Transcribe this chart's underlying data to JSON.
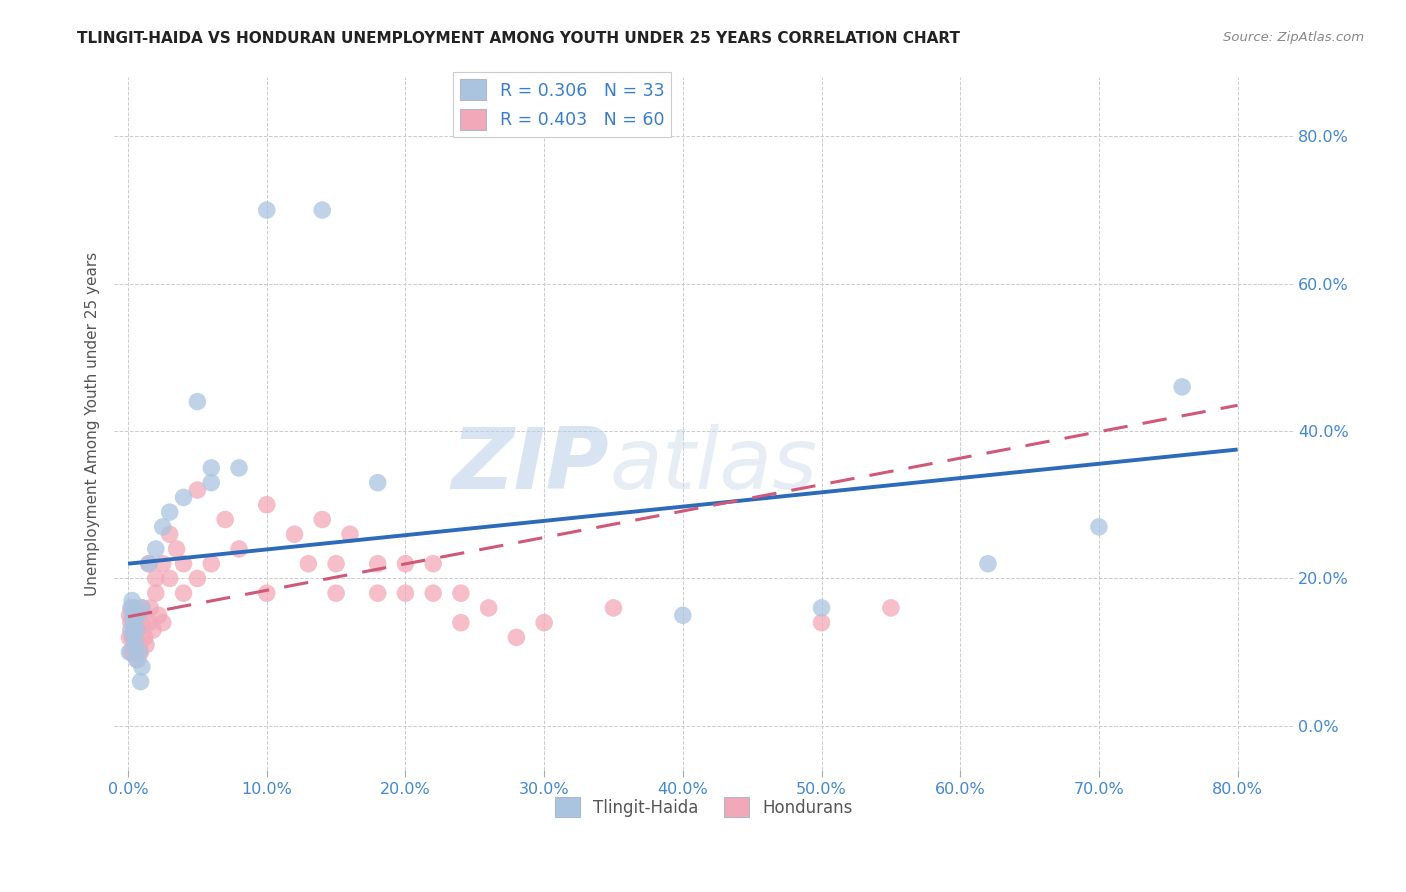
{
  "title": "TLINGIT-HAIDA VS HONDURAN UNEMPLOYMENT AMONG YOUTH UNDER 25 YEARS CORRELATION CHART",
  "source": "Source: ZipAtlas.com",
  "ylabel": "Unemployment Among Youth under 25 years",
  "xlim": [
    -0.01,
    0.84
  ],
  "ylim": [
    -0.06,
    0.88
  ],
  "tlingit_color": "#aac4e0",
  "honduran_color": "#f2a8b8",
  "tlingit_line_color": "#2b6bba",
  "honduran_line_color": "#d05878",
  "watermark_zip": "ZIP",
  "watermark_atlas": "atlas",
  "tlingit_x": [
    0.001,
    0.002,
    0.002,
    0.003,
    0.003,
    0.004,
    0.004,
    0.005,
    0.005,
    0.006,
    0.006,
    0.007,
    0.008,
    0.009,
    0.01,
    0.01,
    0.015,
    0.02,
    0.025,
    0.03,
    0.04,
    0.05,
    0.06,
    0.06,
    0.08,
    0.1,
    0.14,
    0.18,
    0.4,
    0.5,
    0.62,
    0.7,
    0.76
  ],
  "tlingit_y": [
    0.1,
    0.13,
    0.16,
    0.15,
    0.17,
    0.12,
    0.14,
    0.11,
    0.16,
    0.09,
    0.13,
    0.15,
    0.1,
    0.06,
    0.08,
    0.16,
    0.22,
    0.24,
    0.27,
    0.29,
    0.31,
    0.44,
    0.35,
    0.33,
    0.35,
    0.7,
    0.7,
    0.33,
    0.15,
    0.16,
    0.22,
    0.27,
    0.46
  ],
  "honduran_x": [
    0.001,
    0.001,
    0.002,
    0.002,
    0.003,
    0.003,
    0.004,
    0.004,
    0.005,
    0.005,
    0.006,
    0.007,
    0.007,
    0.008,
    0.009,
    0.01,
    0.01,
    0.012,
    0.013,
    0.015,
    0.015,
    0.016,
    0.018,
    0.02,
    0.02,
    0.022,
    0.025,
    0.025,
    0.03,
    0.03,
    0.035,
    0.04,
    0.04,
    0.05,
    0.05,
    0.06,
    0.07,
    0.08,
    0.1,
    0.1,
    0.12,
    0.13,
    0.14,
    0.15,
    0.15,
    0.16,
    0.18,
    0.18,
    0.2,
    0.2,
    0.22,
    0.22,
    0.24,
    0.24,
    0.26,
    0.28,
    0.3,
    0.35,
    0.5,
    0.55
  ],
  "honduran_y": [
    0.12,
    0.15,
    0.1,
    0.14,
    0.12,
    0.16,
    0.1,
    0.13,
    0.11,
    0.15,
    0.12,
    0.09,
    0.13,
    0.11,
    0.1,
    0.14,
    0.16,
    0.12,
    0.11,
    0.14,
    0.22,
    0.16,
    0.13,
    0.18,
    0.2,
    0.15,
    0.14,
    0.22,
    0.26,
    0.2,
    0.24,
    0.18,
    0.22,
    0.32,
    0.2,
    0.22,
    0.28,
    0.24,
    0.3,
    0.18,
    0.26,
    0.22,
    0.28,
    0.18,
    0.22,
    0.26,
    0.18,
    0.22,
    0.18,
    0.22,
    0.18,
    0.22,
    0.18,
    0.14,
    0.16,
    0.12,
    0.14,
    0.16,
    0.14,
    0.16
  ],
  "tlingit_line_x0": 0.0,
  "tlingit_line_y0": 0.22,
  "tlingit_line_x1": 0.8,
  "tlingit_line_y1": 0.375,
  "honduran_line_x0": 0.0,
  "honduran_line_y0": 0.148,
  "honduran_line_x1": 0.8,
  "honduran_line_y1": 0.435
}
